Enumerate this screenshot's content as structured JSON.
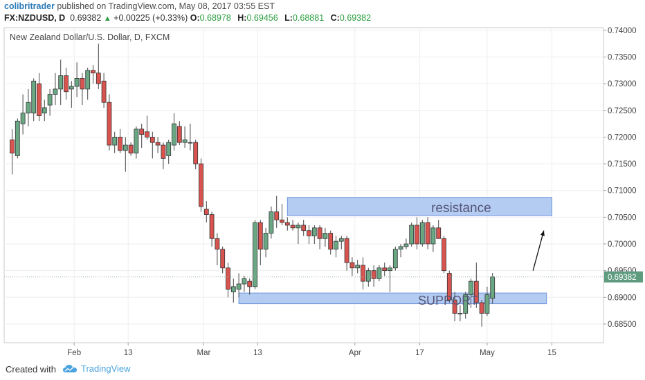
{
  "header": {
    "author": "colibritrader",
    "published_text": " published on TradingView.com, May 08, 2017 03:55 EST",
    "symbol": "FX:NZDUSD, D",
    "last": "0.69382",
    "change": "+0.00225 (+0.33%)",
    "o_label": "O:",
    "o_value": "0.68978",
    "h_label": "H:",
    "h_value": "0.69456",
    "l_label": "L:",
    "l_value": "0.68881",
    "c_label": "C:",
    "c_value": "0.69382"
  },
  "footer": {
    "created_with": "Created with",
    "brand": "TradingView"
  },
  "chart_data": {
    "type": "candlestick",
    "title": "New Zealand Dollar/U.S. Dollar, D, FXCM",
    "ylim": [
      0.6815,
      0.7405
    ],
    "y_ticks": [
      "0.74000",
      "0.73500",
      "0.73000",
      "0.72500",
      "0.72000",
      "0.71500",
      "0.71000",
      "0.70500",
      "0.70000",
      "0.69500",
      "0.69000",
      "0.68500"
    ],
    "x_ticks": [
      {
        "label": "Feb",
        "index": 11.5
      },
      {
        "label": "13",
        "index": 21.5
      },
      {
        "label": "Mar",
        "index": 35.5
      },
      {
        "label": "13",
        "index": 45.5
      },
      {
        "label": "Apr",
        "index": 63.5
      },
      {
        "label": "17",
        "index": 75.5
      },
      {
        "label": "May",
        "index": 88
      },
      {
        "label": "15",
        "index": 100
      }
    ],
    "last_price": "0.69382",
    "colors": {
      "up": "#6aa884",
      "down": "#d9534f",
      "zone_fill": "#a8c3f0",
      "zone_stroke": "#6e95dc",
      "grid": "#eeeeee",
      "label_bg": "#5e9b7f"
    },
    "zones": [
      {
        "label": "resistance",
        "start": 51,
        "end": 100,
        "low": 0.7053,
        "high": 0.7087
      },
      {
        "label": "SUPPORT",
        "start": 42,
        "end": 99,
        "low": 0.6888,
        "high": 0.6908
      }
    ],
    "arrow": {
      "from": [
        96.5,
        0.695
      ],
      "to": [
        98.5,
        0.7025
      ]
    },
    "candles": [
      {
        "o": 0.7195,
        "h": 0.7215,
        "l": 0.713,
        "c": 0.717
      },
      {
        "o": 0.7165,
        "h": 0.7235,
        "l": 0.716,
        "c": 0.723
      },
      {
        "o": 0.7225,
        "h": 0.728,
        "l": 0.7205,
        "c": 0.7245
      },
      {
        "o": 0.7245,
        "h": 0.729,
        "l": 0.722,
        "c": 0.7265
      },
      {
        "o": 0.7245,
        "h": 0.731,
        "l": 0.723,
        "c": 0.7305
      },
      {
        "o": 0.73,
        "h": 0.732,
        "l": 0.723,
        "c": 0.724
      },
      {
        "o": 0.7245,
        "h": 0.727,
        "l": 0.723,
        "c": 0.7255
      },
      {
        "o": 0.726,
        "h": 0.729,
        "l": 0.724,
        "c": 0.728
      },
      {
        "o": 0.728,
        "h": 0.732,
        "l": 0.726,
        "c": 0.729
      },
      {
        "o": 0.729,
        "h": 0.7345,
        "l": 0.726,
        "c": 0.7315
      },
      {
        "o": 0.7315,
        "h": 0.733,
        "l": 0.727,
        "c": 0.7285
      },
      {
        "o": 0.729,
        "h": 0.7305,
        "l": 0.7255,
        "c": 0.7295
      },
      {
        "o": 0.7295,
        "h": 0.734,
        "l": 0.7275,
        "c": 0.731
      },
      {
        "o": 0.731,
        "h": 0.732,
        "l": 0.726,
        "c": 0.729
      },
      {
        "o": 0.729,
        "h": 0.733,
        "l": 0.727,
        "c": 0.7325
      },
      {
        "o": 0.7325,
        "h": 0.7335,
        "l": 0.73,
        "c": 0.732
      },
      {
        "o": 0.732,
        "h": 0.7375,
        "l": 0.729,
        "c": 0.73
      },
      {
        "o": 0.7305,
        "h": 0.732,
        "l": 0.7255,
        "c": 0.7265
      },
      {
        "o": 0.7265,
        "h": 0.728,
        "l": 0.7175,
        "c": 0.7185
      },
      {
        "o": 0.7185,
        "h": 0.721,
        "l": 0.717,
        "c": 0.72
      },
      {
        "o": 0.72,
        "h": 0.7215,
        "l": 0.717,
        "c": 0.7175
      },
      {
        "o": 0.7175,
        "h": 0.72,
        "l": 0.7135,
        "c": 0.7185
      },
      {
        "o": 0.7185,
        "h": 0.719,
        "l": 0.7165,
        "c": 0.717
      },
      {
        "o": 0.717,
        "h": 0.722,
        "l": 0.716,
        "c": 0.7215
      },
      {
        "o": 0.7215,
        "h": 0.7225,
        "l": 0.718,
        "c": 0.7205
      },
      {
        "o": 0.721,
        "h": 0.724,
        "l": 0.7195,
        "c": 0.72
      },
      {
        "o": 0.72,
        "h": 0.721,
        "l": 0.716,
        "c": 0.719
      },
      {
        "o": 0.719,
        "h": 0.72,
        "l": 0.717,
        "c": 0.7185
      },
      {
        "o": 0.7185,
        "h": 0.719,
        "l": 0.714,
        "c": 0.716
      },
      {
        "o": 0.7165,
        "h": 0.7195,
        "l": 0.715,
        "c": 0.719
      },
      {
        "o": 0.7185,
        "h": 0.7245,
        "l": 0.7175,
        "c": 0.7225
      },
      {
        "o": 0.722,
        "h": 0.723,
        "l": 0.7185,
        "c": 0.719
      },
      {
        "o": 0.719,
        "h": 0.722,
        "l": 0.718,
        "c": 0.7195
      },
      {
        "o": 0.719,
        "h": 0.7225,
        "l": 0.7175,
        "c": 0.719
      },
      {
        "o": 0.719,
        "h": 0.7195,
        "l": 0.714,
        "c": 0.715
      },
      {
        "o": 0.715,
        "h": 0.716,
        "l": 0.706,
        "c": 0.707
      },
      {
        "o": 0.7065,
        "h": 0.708,
        "l": 0.704,
        "c": 0.7055
      },
      {
        "o": 0.7055,
        "h": 0.706,
        "l": 0.6995,
        "c": 0.701
      },
      {
        "o": 0.701,
        "h": 0.702,
        "l": 0.696,
        "c": 0.699
      },
      {
        "o": 0.699,
        "h": 0.6995,
        "l": 0.6945,
        "c": 0.6955
      },
      {
        "o": 0.6955,
        "h": 0.6965,
        "l": 0.69,
        "c": 0.6915
      },
      {
        "o": 0.691,
        "h": 0.6935,
        "l": 0.689,
        "c": 0.692
      },
      {
        "o": 0.6915,
        "h": 0.6945,
        "l": 0.69,
        "c": 0.6925
      },
      {
        "o": 0.6925,
        "h": 0.694,
        "l": 0.691,
        "c": 0.6935
      },
      {
        "o": 0.693,
        "h": 0.6935,
        "l": 0.6905,
        "c": 0.692
      },
      {
        "o": 0.692,
        "h": 0.7045,
        "l": 0.6915,
        "c": 0.704
      },
      {
        "o": 0.704,
        "h": 0.7045,
        "l": 0.696,
        "c": 0.699
      },
      {
        "o": 0.699,
        "h": 0.703,
        "l": 0.6975,
        "c": 0.702
      },
      {
        "o": 0.702,
        "h": 0.707,
        "l": 0.701,
        "c": 0.706
      },
      {
        "o": 0.706,
        "h": 0.709,
        "l": 0.703,
        "c": 0.7045
      },
      {
        "o": 0.7045,
        "h": 0.7075,
        "l": 0.7035,
        "c": 0.704
      },
      {
        "o": 0.704,
        "h": 0.705,
        "l": 0.7025,
        "c": 0.7035
      },
      {
        "o": 0.7035,
        "h": 0.7045,
        "l": 0.7025,
        "c": 0.703
      },
      {
        "o": 0.703,
        "h": 0.704,
        "l": 0.7,
        "c": 0.7035
      },
      {
        "o": 0.7035,
        "h": 0.7045,
        "l": 0.7015,
        "c": 0.7025
      },
      {
        "o": 0.7025,
        "h": 0.7035,
        "l": 0.7,
        "c": 0.7015
      },
      {
        "o": 0.7015,
        "h": 0.7035,
        "l": 0.7,
        "c": 0.703
      },
      {
        "o": 0.703,
        "h": 0.7035,
        "l": 0.699,
        "c": 0.701
      },
      {
        "o": 0.701,
        "h": 0.703,
        "l": 0.6995,
        "c": 0.702
      },
      {
        "o": 0.702,
        "h": 0.7025,
        "l": 0.698,
        "c": 0.699
      },
      {
        "o": 0.699,
        "h": 0.7015,
        "l": 0.6975,
        "c": 0.7005
      },
      {
        "o": 0.7005,
        "h": 0.7015,
        "l": 0.699,
        "c": 0.701
      },
      {
        "o": 0.701,
        "h": 0.7015,
        "l": 0.695,
        "c": 0.6965
      },
      {
        "o": 0.6965,
        "h": 0.6975,
        "l": 0.694,
        "c": 0.6955
      },
      {
        "o": 0.6955,
        "h": 0.697,
        "l": 0.6945,
        "c": 0.696
      },
      {
        "o": 0.696,
        "h": 0.6975,
        "l": 0.6915,
        "c": 0.693
      },
      {
        "o": 0.693,
        "h": 0.6955,
        "l": 0.692,
        "c": 0.695
      },
      {
        "o": 0.695,
        "h": 0.696,
        "l": 0.692,
        "c": 0.6935
      },
      {
        "o": 0.6935,
        "h": 0.696,
        "l": 0.693,
        "c": 0.6955
      },
      {
        "o": 0.6955,
        "h": 0.6965,
        "l": 0.694,
        "c": 0.695
      },
      {
        "o": 0.695,
        "h": 0.696,
        "l": 0.691,
        "c": 0.6955
      },
      {
        "o": 0.6955,
        "h": 0.6995,
        "l": 0.695,
        "c": 0.699
      },
      {
        "o": 0.699,
        "h": 0.7,
        "l": 0.6975,
        "c": 0.6995
      },
      {
        "o": 0.6995,
        "h": 0.701,
        "l": 0.699,
        "c": 0.7
      },
      {
        "o": 0.7,
        "h": 0.704,
        "l": 0.6995,
        "c": 0.7035
      },
      {
        "o": 0.7035,
        "h": 0.705,
        "l": 0.699,
        "c": 0.7
      },
      {
        "o": 0.7,
        "h": 0.7045,
        "l": 0.6995,
        "c": 0.704
      },
      {
        "o": 0.704,
        "h": 0.705,
        "l": 0.699,
        "c": 0.7
      },
      {
        "o": 0.7,
        "h": 0.7035,
        "l": 0.6985,
        "c": 0.703
      },
      {
        "o": 0.703,
        "h": 0.7045,
        "l": 0.701,
        "c": 0.701
      },
      {
        "o": 0.701,
        "h": 0.7015,
        "l": 0.6945,
        "c": 0.695
      },
      {
        "o": 0.6945,
        "h": 0.695,
        "l": 0.689,
        "c": 0.6895
      },
      {
        "o": 0.6895,
        "h": 0.691,
        "l": 0.6855,
        "c": 0.687
      },
      {
        "o": 0.687,
        "h": 0.6885,
        "l": 0.6855,
        "c": 0.687
      },
      {
        "o": 0.687,
        "h": 0.691,
        "l": 0.686,
        "c": 0.6905
      },
      {
        "o": 0.6905,
        "h": 0.6935,
        "l": 0.688,
        "c": 0.693
      },
      {
        "o": 0.693,
        "h": 0.6965,
        "l": 0.688,
        "c": 0.689
      },
      {
        "o": 0.689,
        "h": 0.6895,
        "l": 0.6845,
        "c": 0.687
      },
      {
        "o": 0.687,
        "h": 0.692,
        "l": 0.6865,
        "c": 0.6905
      },
      {
        "o": 0.6898,
        "h": 0.69456,
        "l": 0.68881,
        "c": 0.69382
      }
    ]
  }
}
